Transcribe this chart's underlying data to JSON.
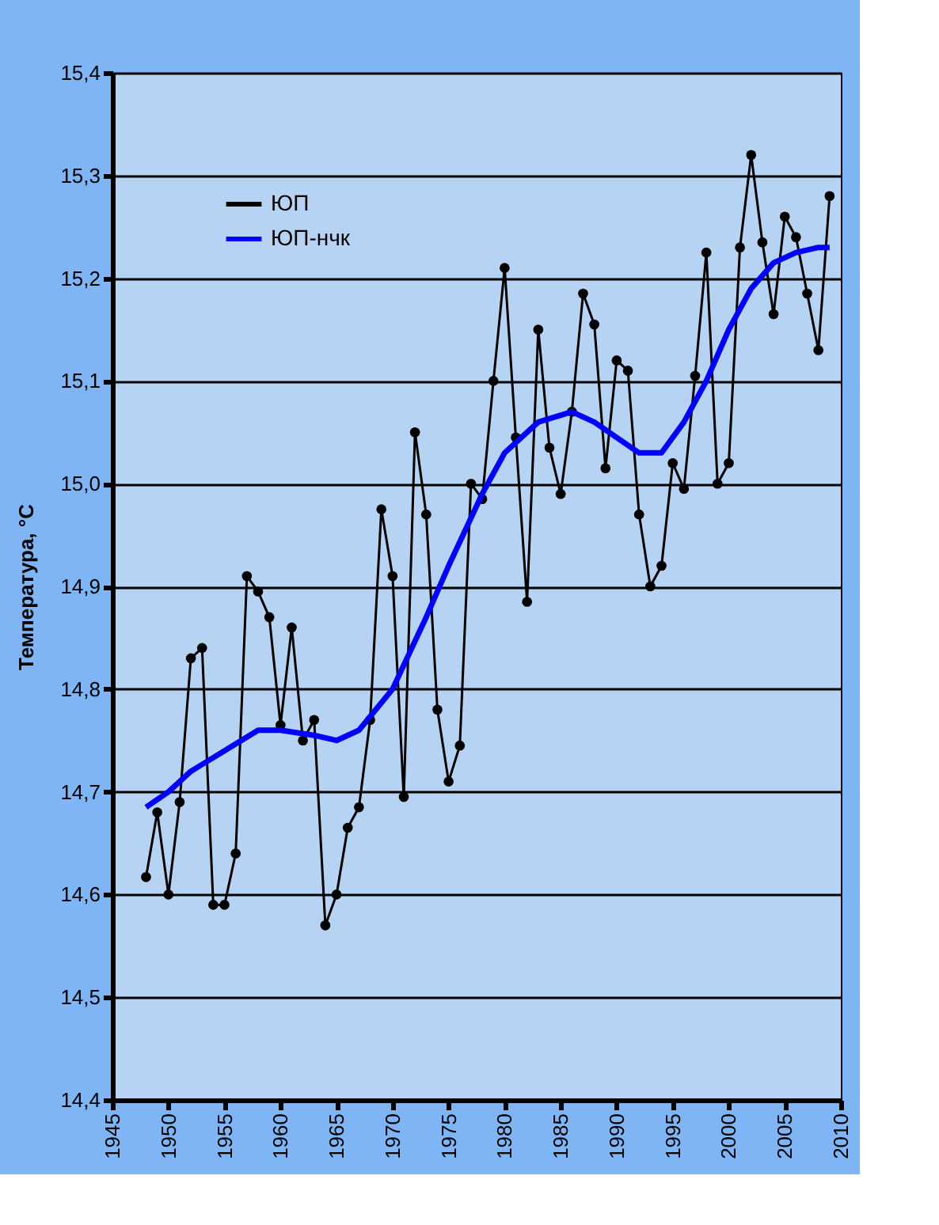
{
  "chart_data": {
    "type": "line",
    "ylabel": "Температура, °С",
    "xlim": [
      1945,
      2010
    ],
    "xticks": [
      1945,
      1950,
      1955,
      1960,
      1965,
      1970,
      1975,
      1980,
      1985,
      1990,
      1995,
      2000,
      2005,
      2010
    ],
    "ylim": [
      14.4,
      15.4
    ],
    "yticks": [
      {
        "value": 14.4,
        "label": "14,4"
      },
      {
        "value": 14.5,
        "label": "14,5"
      },
      {
        "value": 14.6,
        "label": "14,6"
      },
      {
        "value": 14.7,
        "label": "14,7"
      },
      {
        "value": 14.8,
        "label": "14,8"
      },
      {
        "value": 14.9,
        "label": "14,9"
      },
      {
        "value": 15.0,
        "label": "15,0"
      },
      {
        "value": 15.1,
        "label": "15,1"
      },
      {
        "value": 15.2,
        "label": "15,2"
      },
      {
        "value": 15.3,
        "label": "15,3"
      },
      {
        "value": 15.4,
        "label": "15,4"
      }
    ],
    "grid": "y",
    "legend": "top left",
    "series": [
      {
        "name": "ЮП",
        "color": "#000000",
        "marker": "circle",
        "x": [
          1948,
          1949,
          1950,
          1951,
          1952,
          1953,
          1954,
          1955,
          1956,
          1957,
          1958,
          1959,
          1960,
          1961,
          1962,
          1963,
          1964,
          1965,
          1966,
          1967,
          1968,
          1969,
          1970,
          1971,
          1972,
          1973,
          1974,
          1975,
          1976,
          1977,
          1978,
          1979,
          1980,
          1981,
          1982,
          1983,
          1984,
          1985,
          1986,
          1987,
          1988,
          1989,
          1990,
          1991,
          1992,
          1993,
          1994,
          1995,
          1996,
          1997,
          1998,
          1999,
          2000,
          2001,
          2002,
          2003,
          2004,
          2005,
          2006,
          2007,
          2008,
          2009
        ],
        "values": [
          14.617,
          14.68,
          14.6,
          14.69,
          14.83,
          14.84,
          14.59,
          14.59,
          14.64,
          14.91,
          14.895,
          14.87,
          14.765,
          14.86,
          14.75,
          14.77,
          14.57,
          14.6,
          14.665,
          14.685,
          14.77,
          14.975,
          14.91,
          14.695,
          15.05,
          14.97,
          14.78,
          14.71,
          14.745,
          15.0,
          14.985,
          15.1,
          15.21,
          15.045,
          14.885,
          15.15,
          15.035,
          14.99,
          15.07,
          15.185,
          15.155,
          15.015,
          15.12,
          15.11,
          14.97,
          14.9,
          14.92,
          15.02,
          14.995,
          15.105,
          15.225,
          15.0,
          15.02,
          15.23,
          15.32,
          15.235,
          15.165,
          15.26,
          15.24,
          15.185,
          15.13,
          15.28
        ]
      },
      {
        "name": "ЮП-нчк",
        "color": "#0000ff",
        "marker": "none",
        "x": [
          1948,
          1950,
          1952,
          1955,
          1958,
          1960,
          1963,
          1965,
          1967,
          1970,
          1973,
          1975,
          1978,
          1980,
          1983,
          1986,
          1988,
          1990,
          1992,
          1994,
          1996,
          1998,
          2000,
          2002,
          2004,
          2006,
          2008,
          2009
        ],
        "values": [
          14.685,
          14.7,
          14.72,
          14.74,
          14.76,
          14.76,
          14.755,
          14.75,
          14.76,
          14.8,
          14.87,
          14.92,
          14.99,
          15.03,
          15.06,
          15.07,
          15.06,
          15.045,
          15.03,
          15.03,
          15.06,
          15.1,
          15.15,
          15.19,
          15.215,
          15.225,
          15.23,
          15.23
        ]
      }
    ]
  }
}
